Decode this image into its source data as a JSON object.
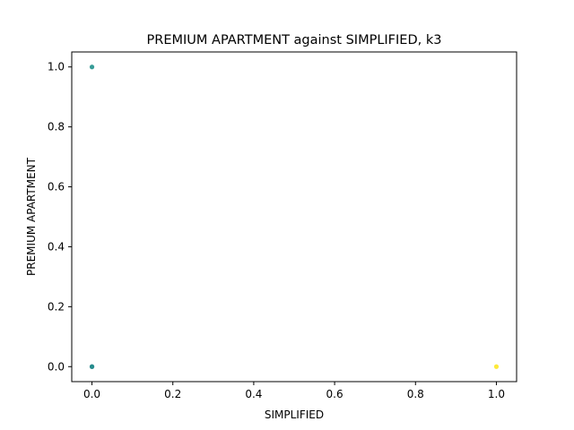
{
  "chart_data": {
    "type": "scatter",
    "title": "PREMIUM APARTMENT against SIMPLIFIED, k3",
    "xlabel": "SIMPLIFIED",
    "ylabel": "PREMIUM APARTMENT",
    "xlim": [
      -0.05,
      1.05
    ],
    "ylim": [
      -0.05,
      1.05
    ],
    "xticks": [
      0.0,
      0.2,
      0.4,
      0.6,
      0.8,
      1.0
    ],
    "yticks": [
      0.0,
      0.2,
      0.4,
      0.6,
      0.8,
      1.0
    ],
    "xtick_labels": [
      "0.0",
      "0.2",
      "0.4",
      "0.6",
      "0.8",
      "1.0"
    ],
    "ytick_labels": [
      "0.0",
      "0.2",
      "0.4",
      "0.6",
      "0.8",
      "1.0"
    ],
    "grid": false,
    "legend": "none",
    "points": [
      {
        "x": 0.0,
        "y": 1.0,
        "color": "#21918c"
      },
      {
        "x": 0.0,
        "y": 0.0,
        "color": "#3b528b"
      },
      {
        "x": 0.0,
        "y": 0.0,
        "color": "#21918c"
      },
      {
        "x": 1.0,
        "y": 0.0,
        "color": "#fde725"
      }
    ]
  }
}
